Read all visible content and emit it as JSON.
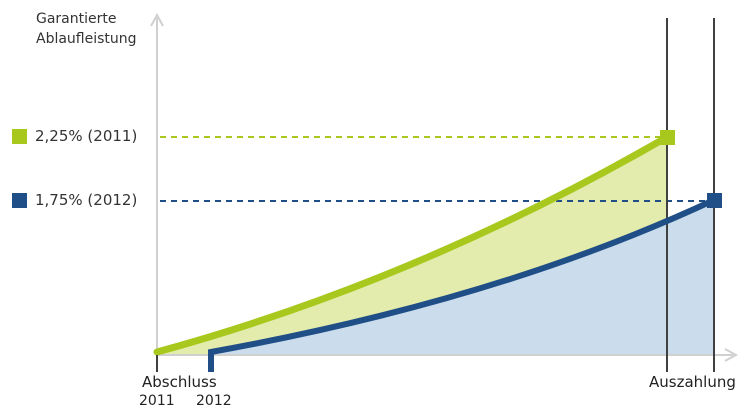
{
  "y_axis_title_line1": "Garantierte",
  "y_axis_title_line2": "Ablaufleistung",
  "legend": [
    {
      "label": "2,25% (2011)",
      "color": "#a8c81e"
    },
    {
      "label": "1,75% (2012)",
      "color": "#1f4f86"
    }
  ],
  "x_labels": {
    "start": "Abschluss",
    "end": "Auszahlung",
    "year_2011": "2011",
    "year_2012": "2012"
  },
  "colors": {
    "axis": "#d0d0d0",
    "fill_2011": "#e3ecad",
    "fill_2012": "#cbdcec",
    "line_2011": "#a8c81e",
    "line_2012": "#1f4f86",
    "marker_lines": "#404040"
  }
}
